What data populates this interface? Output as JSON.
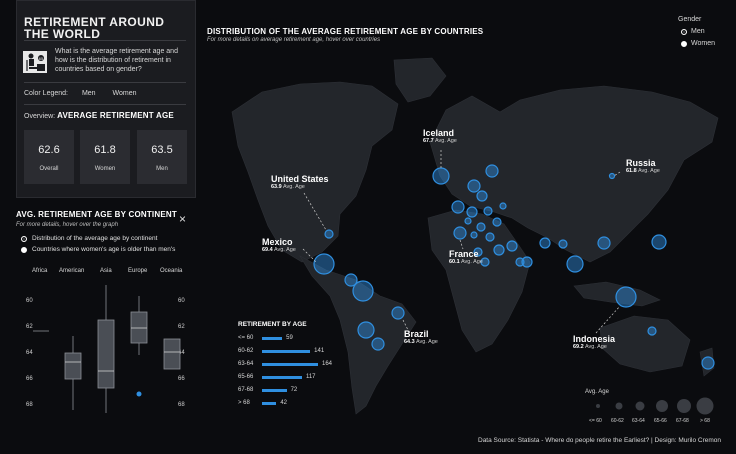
{
  "left_panel": {
    "title": "RETIREMENT AROUND THE WORLD",
    "question": "What is the average retirement age and how is the distribution of retirement in countries based on gender?",
    "color_legend_label": "Color Legend:",
    "legend_men": "Men",
    "legend_women": "Women",
    "overview_prefix": "Overview:",
    "overview_title": "AVERAGE RETIREMENT AGE",
    "stats": [
      {
        "value": "62.6",
        "label": "Overall"
      },
      {
        "value": "61.8",
        "label": "Women"
      },
      {
        "value": "63.5",
        "label": "Men"
      }
    ]
  },
  "continent": {
    "title": "AVG. RETIREMENT AGE BY CONTINENT",
    "subtitle": "For more details, hover over the graph",
    "close_icon": "×",
    "options": [
      "Distribution of the average age by continent",
      "Countries where women's age is older than men's"
    ],
    "categories": [
      "Africa",
      "American",
      "Asia",
      "Europe",
      "Oceania"
    ],
    "y_ticks": [
      "60",
      "62",
      "64",
      "66",
      "68"
    ]
  },
  "map": {
    "title": "DISTRIBUTION OF THE AVERAGE RETIREMENT AGE BY COUNTRIES",
    "subtitle": "For more details on average retirement age, hover over countries",
    "gender_title": "Gender",
    "gender_options": [
      "Men",
      "Women"
    ],
    "avg_suffix": "Avg. Age",
    "labels": [
      {
        "name": "Iceland",
        "value": "67.7"
      },
      {
        "name": "Russia",
        "value": "61.8"
      },
      {
        "name": "United States",
        "value": "63.9"
      },
      {
        "name": "Mexico",
        "value": "69.4"
      },
      {
        "name": "France",
        "value": "60.1"
      },
      {
        "name": "Brazil",
        "value": "64.3"
      },
      {
        "name": "Indonesia",
        "value": "69.2"
      }
    ]
  },
  "retirement_by_age": {
    "title": "RETIREMENT BY AGE",
    "rows": [
      {
        "label": "<= 60",
        "count": "59",
        "value": 59
      },
      {
        "label": "60-62",
        "count": "141",
        "value": 141
      },
      {
        "label": "63-64",
        "count": "164",
        "value": 164
      },
      {
        "label": "65-66",
        "count": "117",
        "value": 117
      },
      {
        "label": "67-68",
        "count": "72",
        "value": 72
      },
      {
        "label": "> 68",
        "count": "42",
        "value": 42
      }
    ]
  },
  "avg_age_legend": {
    "title": "Avg. Age",
    "labels": [
      "<= 60",
      "60-62",
      "63-64",
      "65-66",
      "67-68",
      "> 68"
    ]
  },
  "footer": {
    "text": "Data Source: Statista - Where do people retire the Earliest?   |   Design: Murilo Cremon"
  },
  "colors": {
    "accent": "#2f8fe0",
    "background": "#0b0c0f",
    "land": "#23262b"
  }
}
